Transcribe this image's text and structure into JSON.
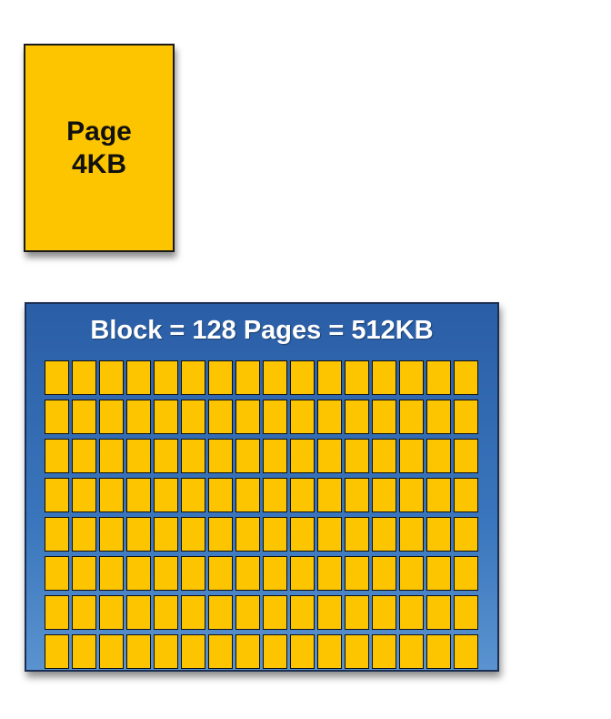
{
  "page": {
    "label_line1": "Page",
    "label_line2": "4KB",
    "color": "#fdc400"
  },
  "block": {
    "title": "Block = 128 Pages = 512KB",
    "page_count": 128,
    "rows": 8,
    "columns": 16,
    "background_color": "#3a76bd",
    "cell_color": "#fdc400"
  }
}
